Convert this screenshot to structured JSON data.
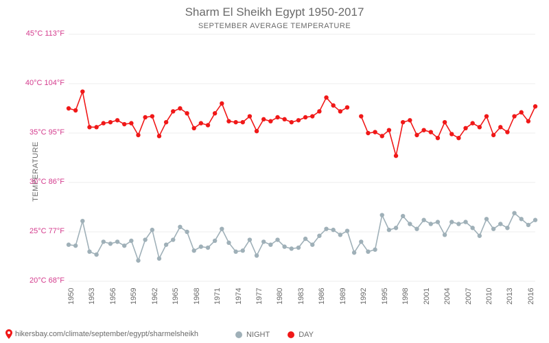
{
  "chart": {
    "title": "Sharm El Sheikh Egypt 1950-2017",
    "subtitle": "SEPTEMBER AVERAGE TEMPERATURE",
    "ylabel": "TEMPERATURE",
    "background_color": "#ffffff",
    "plot_bg": "#ffffff",
    "title_color": "#6a6a6a",
    "subtitle_color": "#6a6a6a",
    "axis_text_color": "#6a6a6a",
    "ytick_color": "#d43b8d",
    "grid_color": "#eeeeee",
    "title_fontsize": 17,
    "subtitle_fontsize": 11,
    "label_fontsize": 11,
    "tick_fontsize": 11,
    "ylim": [
      20,
      45
    ],
    "yticks": [
      {
        "c": "20°C",
        "f": "68°F",
        "v": 20
      },
      {
        "c": "25°C",
        "f": "77°F",
        "v": 25
      },
      {
        "c": "30°C",
        "f": "86°F",
        "v": 30
      },
      {
        "c": "35°C",
        "f": "95°F",
        "v": 35
      },
      {
        "c": "40°C",
        "f": "104°F",
        "v": 40
      },
      {
        "c": "45°C",
        "f": "113°F",
        "v": 45
      }
    ],
    "years": [
      1950,
      1951,
      1952,
      1953,
      1954,
      1955,
      1956,
      1957,
      1958,
      1959,
      1960,
      1961,
      1962,
      1963,
      1964,
      1965,
      1966,
      1967,
      1968,
      1969,
      1970,
      1971,
      1972,
      1973,
      1974,
      1975,
      1976,
      1977,
      1978,
      1979,
      1980,
      1981,
      1982,
      1983,
      1984,
      1985,
      1986,
      1987,
      1988,
      1989,
      1990,
      1991,
      1992,
      1993,
      1994,
      1995,
      1996,
      1997,
      1998,
      1999,
      2000,
      2001,
      2002,
      2003,
      2004,
      2005,
      2006,
      2007,
      2008,
      2009,
      2010,
      2011,
      2012,
      2013,
      2014,
      2015,
      2016,
      2017
    ],
    "xticks": [
      1950,
      1953,
      1956,
      1959,
      1962,
      1965,
      1968,
      1971,
      1974,
      1977,
      1980,
      1983,
      1986,
      1989,
      1992,
      1995,
      1998,
      2001,
      2004,
      2007,
      2010,
      2013,
      2016
    ],
    "series": {
      "day": {
        "label": "DAY",
        "color": "#f01818",
        "line_width": 1.6,
        "marker_radius": 3.2,
        "values": [
          37.5,
          37.3,
          39.2,
          35.6,
          35.6,
          36.0,
          36.1,
          36.3,
          35.9,
          36.0,
          34.8,
          36.6,
          36.7,
          34.7,
          36.1,
          37.2,
          37.5,
          37.0,
          35.5,
          36.0,
          35.8,
          37.0,
          38.0,
          36.2,
          36.1,
          36.1,
          36.7,
          35.2,
          36.4,
          36.2,
          36.6,
          36.4,
          36.1,
          36.3,
          36.6,
          36.7,
          37.2,
          38.6,
          37.8,
          37.2,
          37.6,
          null,
          36.7,
          35.0,
          35.1,
          34.7,
          35.3,
          32.7,
          36.1,
          36.3,
          34.8,
          35.3,
          35.1,
          34.5,
          36.1,
          34.9,
          34.5,
          35.5,
          36.0,
          35.6,
          36.7,
          34.8,
          35.6,
          35.1,
          36.7,
          37.1,
          36.2,
          37.7
        ]
      },
      "night": {
        "label": "NIGHT",
        "color": "#9fb0b8",
        "line_width": 1.6,
        "marker_radius": 3.2,
        "values": [
          23.7,
          23.6,
          26.1,
          23.0,
          22.7,
          24.0,
          23.8,
          24.0,
          23.6,
          24.1,
          22.1,
          24.2,
          25.2,
          22.3,
          23.7,
          24.2,
          25.5,
          25.0,
          23.1,
          23.5,
          23.4,
          24.1,
          25.3,
          23.9,
          23.0,
          23.1,
          24.2,
          22.6,
          24.0,
          23.7,
          24.2,
          23.5,
          23.3,
          23.4,
          24.3,
          23.7,
          24.6,
          25.3,
          25.2,
          24.7,
          25.1,
          22.9,
          24.0,
          23.0,
          23.2,
          26.7,
          25.2,
          25.4,
          26.6,
          25.8,
          25.3,
          26.2,
          25.8,
          26.0,
          24.7,
          26.0,
          25.8,
          26.0,
          25.4,
          24.6,
          26.3,
          25.3,
          25.8,
          25.4,
          26.9,
          26.3,
          25.7,
          26.2
        ]
      }
    },
    "legend_order": [
      "night",
      "day"
    ],
    "footer": {
      "url": "hikersbay.com/climate/september/egypt/sharmelsheikh",
      "pin_color": "#f01818"
    }
  }
}
